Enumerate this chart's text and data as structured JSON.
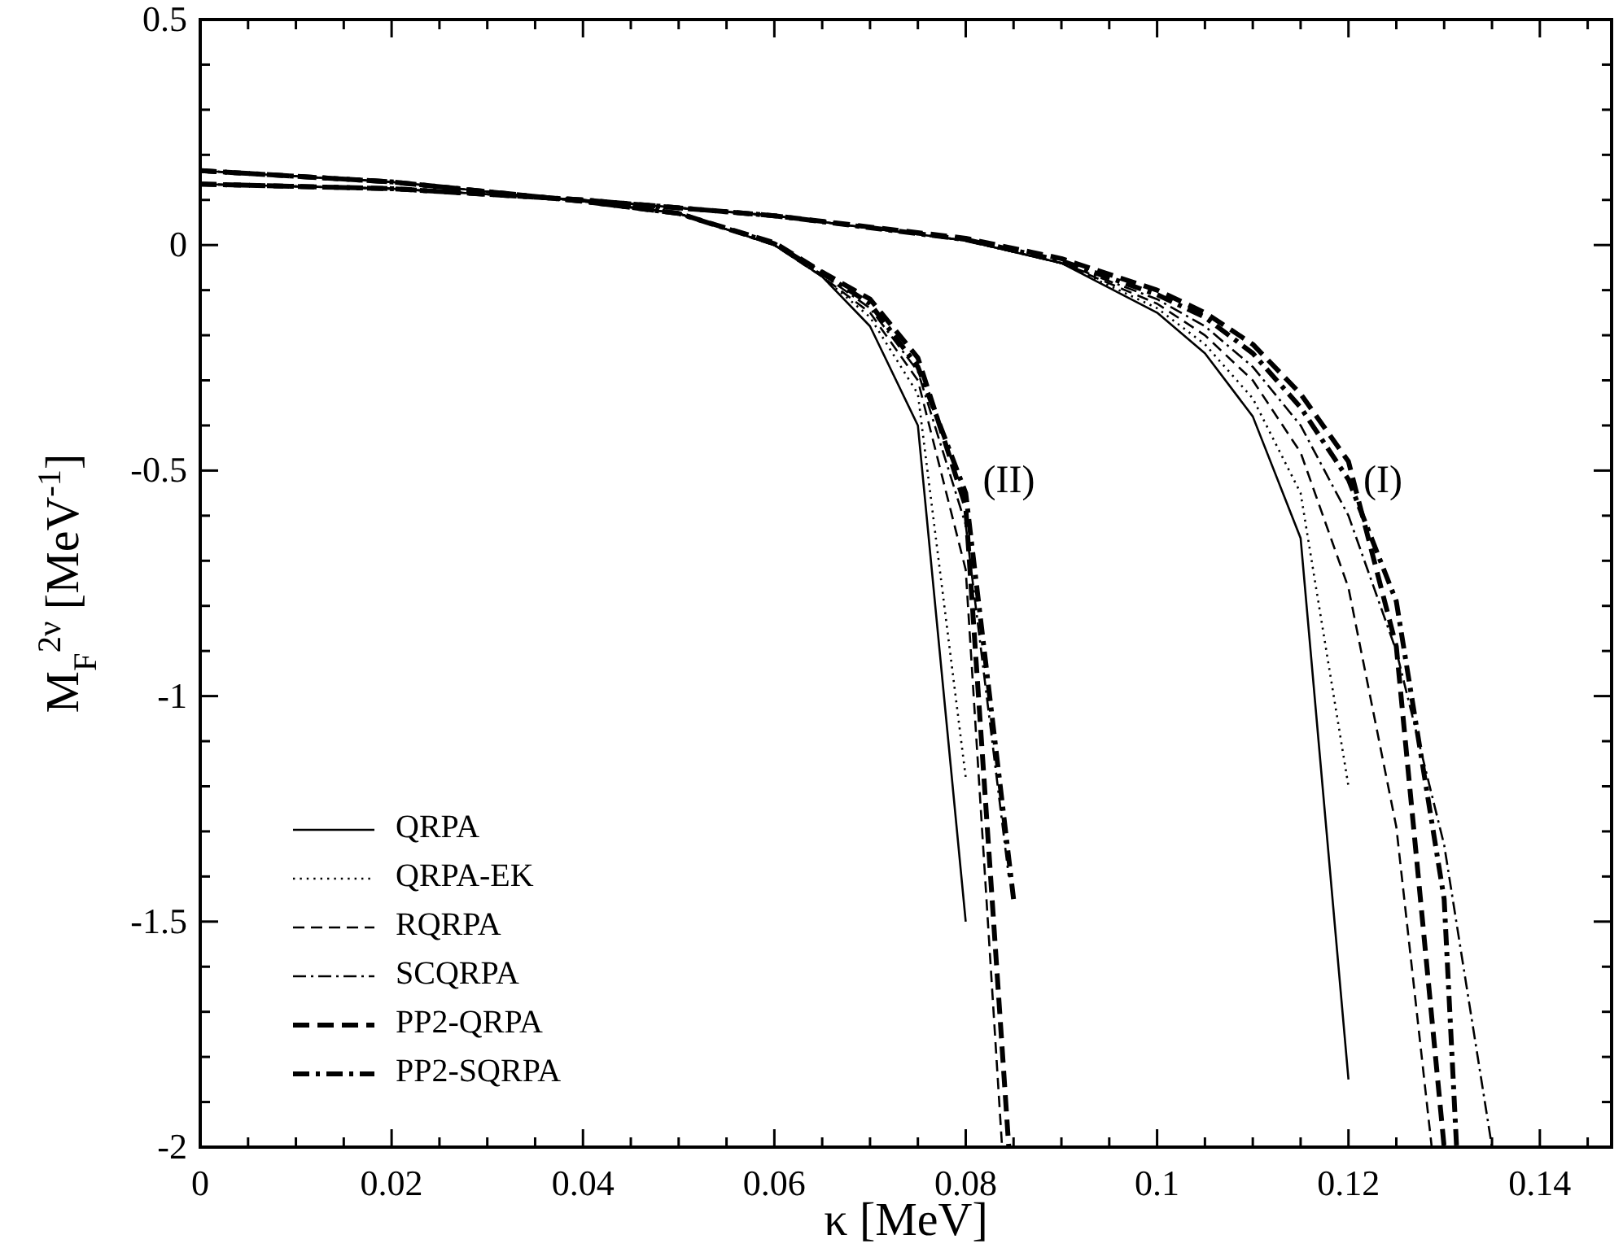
{
  "chart_data": {
    "type": "line",
    "xlabel": "κ [MeV]",
    "ylabel": "M$_{F}$$^{2ν}$ [MeV$^{-1}$]",
    "xlim": [
      0,
      0.1475
    ],
    "ylim": [
      -2,
      0.5
    ],
    "xticks": [
      0,
      {
        "value": 0.005,
        "label": null
      },
      {
        "value": 0.01,
        "label": null
      },
      {
        "value": 0.015,
        "label": null
      },
      0.02,
      {
        "value": 0.025,
        "label": null
      },
      {
        "value": 0.03,
        "label": null
      },
      {
        "value": 0.035,
        "label": null
      },
      0.04,
      {
        "value": 0.045,
        "label": null
      },
      {
        "value": 0.05,
        "label": null
      },
      {
        "value": 0.055,
        "label": null
      },
      0.06,
      {
        "value": 0.065,
        "label": null
      },
      {
        "value": 0.07,
        "label": null
      },
      {
        "value": 0.075,
        "label": null
      },
      0.08,
      {
        "value": 0.085,
        "label": null
      },
      {
        "value": 0.09,
        "label": null
      },
      {
        "value": 0.095,
        "label": null
      },
      0.1,
      {
        "value": 0.105,
        "label": null
      },
      {
        "value": 0.11,
        "label": null
      },
      {
        "value": 0.115,
        "label": null
      },
      0.12,
      {
        "value": 0.125,
        "label": null
      },
      {
        "value": 0.13,
        "label": null
      },
      {
        "value": 0.135,
        "label": null
      },
      0.14,
      {
        "value": 0.145,
        "label": null
      }
    ],
    "yticks": [
      -2,
      {
        "value": -1.9,
        "label": null
      },
      {
        "value": -1.8,
        "label": null
      },
      {
        "value": -1.7,
        "label": null
      },
      {
        "value": -1.6,
        "label": null
      },
      -1.5,
      {
        "value": -1.4,
        "label": null
      },
      {
        "value": -1.3,
        "label": null
      },
      {
        "value": -1.2,
        "label": null
      },
      {
        "value": -1.1,
        "label": null
      },
      -1,
      {
        "value": -0.9,
        "label": null
      },
      {
        "value": -0.8,
        "label": null
      },
      {
        "value": -0.7,
        "label": null
      },
      {
        "value": -0.6,
        "label": null
      },
      -0.5,
      {
        "value": -0.4,
        "label": null
      },
      {
        "value": -0.3,
        "label": null
      },
      {
        "value": -0.2,
        "label": null
      },
      {
        "value": -0.1,
        "label": null
      },
      0,
      {
        "value": 0.1,
        "label": null
      },
      {
        "value": 0.2,
        "label": null
      },
      {
        "value": 0.3,
        "label": null
      },
      {
        "value": 0.4,
        "label": null
      },
      0.5
    ],
    "grid": false,
    "legend": "bottom left",
    "marker": "none",
    "annotations": [
      "(II)",
      "(I)"
    ],
    "series": [
      {
        "name": "QRPA",
        "color": "#000000",
        "line_style": "solid",
        "x": [
          0,
          0.02,
          0.04,
          0.06,
          0.08,
          0.09,
          0.1,
          0.105,
          0.11,
          0.115,
          0.12
        ],
        "values": [
          0.135,
          0.125,
          0.1,
          0.065,
          0.01,
          -0.04,
          -0.15,
          -0.24,
          -0.38,
          -0.65,
          -1.85
        ]
      },
      {
        "name": "QRPA-EK",
        "color": "#000000",
        "line_style": "dotted",
        "x": [
          0,
          0.02,
          0.04,
          0.06,
          0.08,
          0.09,
          0.1,
          0.105,
          0.11,
          0.115,
          0.12
        ],
        "values": [
          0.135,
          0.125,
          0.1,
          0.065,
          0.01,
          -0.04,
          -0.14,
          -0.22,
          -0.34,
          -0.55,
          -1.2
        ]
      },
      {
        "name": "RQRPA",
        "color": "#000000",
        "line_style": "dashed",
        "x": [
          0,
          0.02,
          0.04,
          0.06,
          0.08,
          0.09,
          0.1,
          0.105,
          0.11,
          0.115,
          0.12,
          0.125,
          0.1287
        ],
        "values": [
          0.135,
          0.125,
          0.1,
          0.065,
          0.01,
          -0.04,
          -0.13,
          -0.2,
          -0.3,
          -0.46,
          -0.76,
          -1.29,
          -2
        ]
      },
      {
        "name": "SCQRPA",
        "color": "#000000",
        "line_style": "dashdot",
        "x": [
          0,
          0.02,
          0.04,
          0.06,
          0.08,
          0.09,
          0.1,
          0.105,
          0.11,
          0.115,
          0.12,
          0.125,
          0.13,
          0.135
        ],
        "values": [
          0.135,
          0.125,
          0.1,
          0.065,
          0.01,
          -0.04,
          -0.12,
          -0.18,
          -0.27,
          -0.4,
          -0.6,
          -0.9,
          -1.33,
          -2
        ]
      },
      {
        "name": "PP2-QRPA",
        "color": "#000000",
        "line_style": "longdash",
        "x": [
          0,
          0.02,
          0.04,
          0.06,
          0.08,
          0.09,
          0.1,
          0.105,
          0.11,
          0.115,
          0.12,
          0.125,
          0.13
        ],
        "values": [
          0.135,
          0.125,
          0.1,
          0.065,
          0.015,
          -0.03,
          -0.1,
          -0.15,
          -0.22,
          -0.33,
          -0.48,
          -0.89,
          -2
        ]
      },
      {
        "name": "PP2-SQRPA",
        "color": "#000000",
        "line_style": "longdashdot",
        "x": [
          0,
          0.02,
          0.04,
          0.06,
          0.08,
          0.09,
          0.1,
          0.105,
          0.11,
          0.115,
          0.12,
          0.125,
          0.13,
          0.1313
        ],
        "values": [
          0.135,
          0.125,
          0.1,
          0.065,
          0.012,
          -0.035,
          -0.11,
          -0.16,
          -0.24,
          -0.36,
          -0.52,
          -0.79,
          -1.45,
          -2
        ]
      },
      {
        "color": "#000000",
        "line_style": "solid",
        "x": [
          0,
          0.02,
          0.04,
          0.05,
          0.06,
          0.065,
          0.07,
          0.075,
          0.08
        ],
        "values": [
          0.165,
          0.14,
          0.097,
          0.07,
          0,
          -0.07,
          -0.18,
          -0.4,
          -1.5
        ]
      },
      {
        "color": "#000000",
        "line_style": "dotted",
        "x": [
          0,
          0.02,
          0.04,
          0.05,
          0.06,
          0.065,
          0.07,
          0.075,
          0.08
        ],
        "values": [
          0.165,
          0.14,
          0.097,
          0.07,
          0,
          -0.07,
          -0.16,
          -0.33,
          -1.18
        ]
      },
      {
        "color": "#000000",
        "line_style": "dashed",
        "x": [
          0,
          0.02,
          0.04,
          0.05,
          0.06,
          0.065,
          0.07,
          0.075,
          0.08,
          0.0838
        ],
        "values": [
          0.165,
          0.14,
          0.097,
          0.07,
          0,
          -0.07,
          -0.15,
          -0.3,
          -0.72,
          -2
        ]
      },
      {
        "color": "#000000",
        "line_style": "dashdot",
        "x": [
          0,
          0.02,
          0.04,
          0.05,
          0.06,
          0.065,
          0.07,
          0.075,
          0.08,
          0.0845
        ],
        "values": [
          0.165,
          0.14,
          0.097,
          0.07,
          0,
          -0.065,
          -0.14,
          -0.28,
          -0.62,
          -1.4
        ]
      },
      {
        "color": "#000000",
        "line_style": "longdash",
        "x": [
          0,
          0.02,
          0.04,
          0.05,
          0.06,
          0.065,
          0.07,
          0.075,
          0.08,
          0.0845
        ],
        "values": [
          0.165,
          0.14,
          0.097,
          0.07,
          0.005,
          -0.06,
          -0.12,
          -0.25,
          -0.58,
          -2
        ]
      },
      {
        "color": "#000000",
        "line_style": "longdashdot",
        "x": [
          0,
          0.02,
          0.04,
          0.05,
          0.06,
          0.065,
          0.07,
          0.075,
          0.08,
          0.085
        ],
        "values": [
          0.165,
          0.14,
          0.097,
          0.07,
          0.003,
          -0.062,
          -0.13,
          -0.27,
          -0.55,
          -1.45
        ]
      }
    ]
  }
}
